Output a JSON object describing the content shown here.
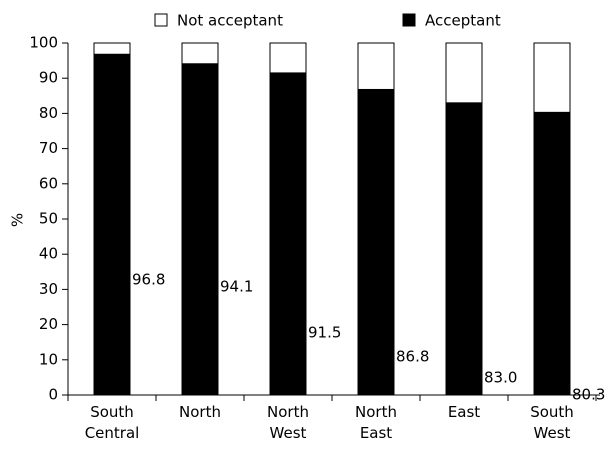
{
  "chart_data": {
    "type": "stacked_bar",
    "y_label": "%",
    "categories": [
      [
        "South",
        "Central"
      ],
      [
        "North"
      ],
      [
        "North",
        "West"
      ],
      [
        "North",
        "East"
      ],
      [
        "East"
      ],
      [
        "South",
        "West"
      ]
    ],
    "series": [
      {
        "name": "Acceptant",
        "color": "#000000",
        "values": [
          96.8,
          94.1,
          91.5,
          86.8,
          83.0,
          80.3
        ],
        "value_labels": [
          "96.8",
          "94.1",
          "91.5",
          "86.8",
          "83.0",
          "80.3"
        ]
      },
      {
        "name": "Not acceptant",
        "color": "#ffffff",
        "values": [
          3.2,
          5.9,
          8.5,
          13.2,
          17.0,
          19.7
        ]
      }
    ],
    "ylim": [
      0,
      100
    ],
    "yticks": [
      0,
      10,
      20,
      30,
      40,
      50,
      60,
      70,
      80,
      90,
      100
    ]
  }
}
